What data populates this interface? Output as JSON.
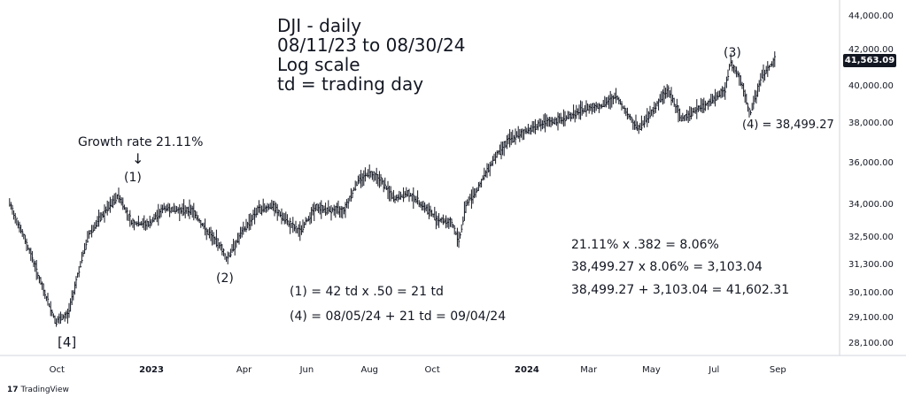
{
  "header": {
    "line1": "DJI - daily",
    "line2": "08/11/23 to 08/30/24",
    "line3": "Log scale",
    "line4": "td = trading day"
  },
  "labels": {
    "growth_rate": "Growth rate 21.11%",
    "arrow": "↓",
    "wave1": "(1)",
    "wave2": "(2)",
    "wave3": "(3)",
    "wave4": "(4) = 38,499.27",
    "wave4_big": "[4]"
  },
  "calcs": {
    "c1": "21.11% x .382 = 8.06%",
    "c2": "38,499.27 x 8.06% = 3,103.04",
    "c3": "38,499.27 + 3,103.04 = 41,602.31",
    "c4": "(1) = 42 td x .50 = 21 td",
    "c5": "(4) = 08/05/24 + 21 td = 09/04/24"
  },
  "price_badge": "41,563.09",
  "brand": {
    "mark": "17",
    "name": "TradingView"
  },
  "colors": {
    "bars": "#131722",
    "grid": "#f0f3fa",
    "axis": "#d1d4dc"
  },
  "chart_data": {
    "type": "line",
    "title": "DJI - daily",
    "scale": "log",
    "grid": false,
    "ylim": [
      27500,
      44000
    ],
    "y_ticks": [
      "44,000.00",
      "42,000.00",
      "40,000.00",
      "38,000.00",
      "36,000.00",
      "34,000.00",
      "32,500.00",
      "31,300.00",
      "30,100.00",
      "29,100.00",
      "28,100.00"
    ],
    "x_ticks": [
      "Oct",
      "2023",
      "Apr",
      "Jun",
      "Aug",
      "Oct",
      "2024",
      "Mar",
      "May",
      "Jul",
      "Sep"
    ],
    "x": [
      "2022-08-16",
      "2022-08-26",
      "2022-09-06",
      "2022-09-16",
      "2022-09-30",
      "2022-10-12",
      "2022-10-21",
      "2022-11-01",
      "2022-11-15",
      "2022-11-30",
      "2022-12-13",
      "2022-12-30",
      "2023-01-13",
      "2023-01-27",
      "2023-02-10",
      "2023-02-24",
      "2023-03-09",
      "2023-03-15",
      "2023-03-29",
      "2023-04-14",
      "2023-04-28",
      "2023-05-12",
      "2023-05-25",
      "2023-06-09",
      "2023-06-23",
      "2023-07-07",
      "2023-07-21",
      "2023-08-01",
      "2023-08-11",
      "2023-08-25",
      "2023-09-08",
      "2023-09-22",
      "2023-10-06",
      "2023-10-20",
      "2023-10-27",
      "2023-11-03",
      "2023-11-14",
      "2023-11-30",
      "2023-12-14",
      "2023-12-29",
      "2024-01-12",
      "2024-01-31",
      "2024-02-14",
      "2024-03-01",
      "2024-03-14",
      "2024-03-28",
      "2024-04-12",
      "2024-04-19",
      "2024-05-03",
      "2024-05-17",
      "2024-05-30",
      "2024-06-14",
      "2024-06-28",
      "2024-07-12",
      "2024-07-17",
      "2024-07-26",
      "2024-08-05",
      "2024-08-16",
      "2024-08-30"
    ],
    "series": [
      {
        "name": "",
        "values": [
          34100,
          33000,
          31800,
          30500,
          29000,
          29300,
          30900,
          32700,
          33600,
          34500,
          33200,
          33150,
          33900,
          33800,
          33800,
          32800,
          32200,
          31600,
          32700,
          33800,
          34000,
          33300,
          32800,
          33900,
          33800,
          33800,
          35200,
          35600,
          35300,
          34300,
          34600,
          34000,
          33400,
          33200,
          32400,
          34100,
          34800,
          36300,
          37200,
          37600,
          38000,
          38200,
          38500,
          38900,
          39000,
          39500,
          38200,
          37800,
          38800,
          39900,
          38300,
          38800,
          39200,
          39900,
          41400,
          40500,
          38499,
          40600,
          41563
        ]
      }
    ],
    "pivots": {
      "(1)": {
        "date": "2022-11-30",
        "value": 34589
      },
      "(2)": {
        "date": "2023-03-15",
        "value": 31430
      },
      "(3)": {
        "date": "2024-07-17",
        "value": 41376
      },
      "(4)": {
        "date": "2024-08-05",
        "value": 38499.27
      },
      "[4]": {
        "date": "2022-09-30",
        "value": 28660
      }
    }
  }
}
